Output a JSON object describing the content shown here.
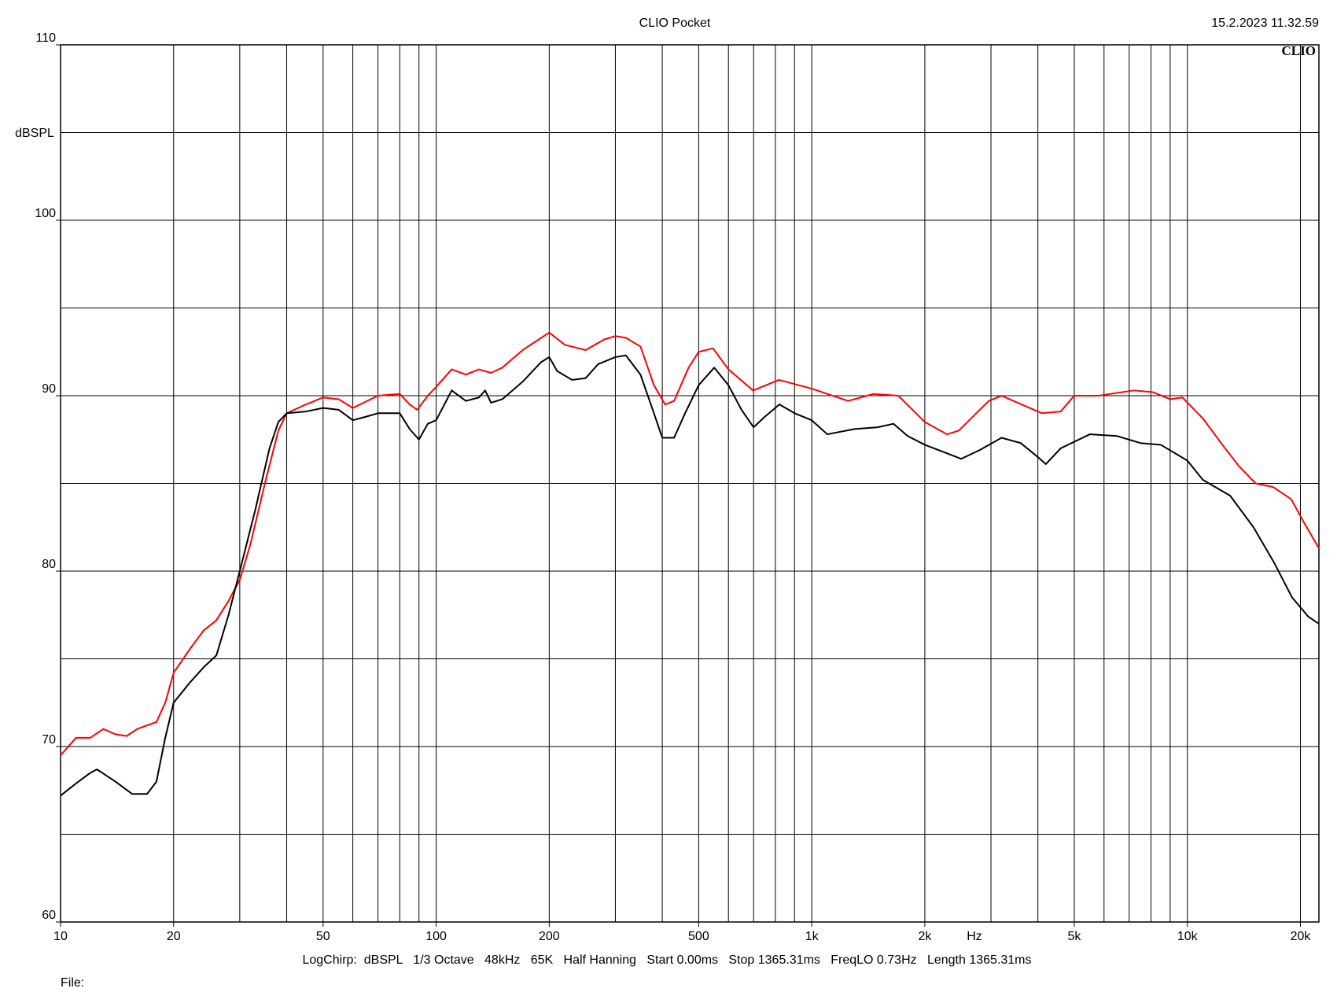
{
  "chart_data": {
    "type": "line",
    "title": "CLIO Pocket",
    "timestamp": "15.2.2023 11.32.59",
    "logo": "CLIO",
    "ylabel": "dBSPL",
    "xlabel": "Hz",
    "settings_text": "LogChirp:  dBSPL   1/3 Octave   48kHz   65K   Half Hanning   Start 0.00ms   Stop 1365.31ms   FreqLO 0.73Hz   Length 1365.31ms",
    "file_label": "File:",
    "xscale": "log",
    "grid": true,
    "xlim": [
      10,
      22400
    ],
    "ylim": [
      60,
      110
    ],
    "xticks": [
      10,
      20,
      50,
      100,
      200,
      500,
      {
        "value": 1000,
        "label": "1k"
      },
      {
        "value": 2000,
        "label": "2k"
      },
      {
        "value": 5000,
        "label": "5k"
      },
      {
        "value": 10000,
        "label": "10k"
      },
      {
        "value": 20000,
        "label": "20k"
      }
    ],
    "x_minor_grid": [
      30,
      40,
      60,
      70,
      80,
      90,
      300,
      400,
      600,
      700,
      800,
      900,
      3000,
      4000,
      6000,
      7000,
      8000,
      9000
    ],
    "yticks": [
      60,
      70,
      80,
      90,
      100,
      110
    ],
    "y_minor_grid": [
      65,
      75,
      85,
      95,
      105
    ],
    "series": [
      {
        "color": "#ff0000",
        "x": [
          10,
          11,
          12,
          13,
          14,
          15,
          16,
          18,
          19,
          20,
          22,
          24,
          26,
          28,
          30,
          32,
          35,
          38,
          40,
          45,
          50,
          55,
          60,
          70,
          80,
          85,
          89,
          95,
          100,
          110,
          120,
          130,
          140,
          150,
          170,
          200,
          220,
          250,
          280,
          300,
          320,
          350,
          380,
          407,
          430,
          470,
          500,
          546,
          600,
          698,
          818,
          1000,
          1250,
          1460,
          1700,
          2000,
          2290,
          2460,
          2960,
          3200,
          4100,
          4600,
          5000,
          5800,
          7200,
          8100,
          9000,
          9700,
          11000,
          12400,
          13700,
          15200,
          16900,
          18900,
          20400,
          22400
        ],
        "values": [
          69.5,
          70.5,
          70.5,
          71.0,
          70.7,
          70.6,
          71.0,
          71.4,
          72.5,
          74.2,
          75.5,
          76.6,
          77.2,
          78.3,
          79.5,
          81.5,
          85.0,
          88.0,
          89.0,
          89.5,
          89.9,
          89.8,
          89.3,
          90.0,
          90.1,
          89.5,
          89.2,
          90.0,
          90.5,
          91.5,
          91.2,
          91.5,
          91.3,
          91.6,
          92.6,
          93.6,
          92.9,
          92.6,
          93.2,
          93.4,
          93.3,
          92.8,
          90.6,
          89.5,
          89.7,
          91.6,
          92.5,
          92.7,
          91.5,
          90.3,
          90.9,
          90.4,
          89.7,
          90.1,
          90.0,
          88.5,
          87.8,
          88.0,
          89.7,
          90.0,
          89.0,
          89.1,
          90.0,
          90.0,
          90.3,
          90.2,
          89.8,
          89.9,
          88.7,
          87.2,
          86.0,
          85.0,
          84.8,
          84.1,
          82.8,
          81.3
        ]
      },
      {
        "color": "#000000",
        "x": [
          10,
          11,
          12,
          12.5,
          14,
          15.5,
          17,
          18,
          19,
          20,
          22,
          24,
          26,
          28,
          30,
          33,
          36,
          38,
          40,
          45,
          50,
          55,
          60,
          65,
          70,
          80,
          85,
          90,
          95,
          100,
          110,
          120,
          130,
          135,
          140,
          150,
          170,
          190,
          200,
          210,
          230,
          250,
          270,
          300,
          320,
          350,
          380,
          400,
          430,
          460,
          500,
          550,
          600,
          650,
          700,
          750,
          820,
          900,
          1000,
          1100,
          1300,
          1500,
          1650,
          1800,
          2000,
          2300,
          2500,
          2800,
          3200,
          3600,
          4000,
          4200,
          4600,
          5500,
          6500,
          7500,
          8500,
          10000,
          11000,
          13000,
          15000,
          17000,
          19000,
          21000,
          22400
        ],
        "values": [
          67.2,
          67.9,
          68.5,
          68.7,
          68.0,
          67.3,
          67.3,
          68.0,
          70.5,
          72.5,
          73.6,
          74.5,
          75.2,
          77.5,
          80.0,
          83.5,
          87.0,
          88.5,
          89.0,
          89.1,
          89.3,
          89.2,
          88.6,
          88.8,
          89.0,
          89.0,
          88.1,
          87.5,
          88.4,
          88.6,
          90.3,
          89.7,
          89.9,
          90.3,
          89.6,
          89.8,
          90.8,
          91.9,
          92.2,
          91.4,
          90.9,
          91.0,
          91.8,
          92.2,
          92.3,
          91.2,
          89.0,
          87.6,
          87.6,
          89.0,
          90.6,
          91.6,
          90.6,
          89.2,
          88.2,
          88.8,
          89.5,
          89.0,
          88.6,
          87.8,
          88.1,
          88.2,
          88.4,
          87.7,
          87.2,
          86.7,
          86.4,
          86.9,
          87.6,
          87.3,
          86.5,
          86.1,
          87.0,
          87.8,
          87.7,
          87.3,
          87.2,
          86.3,
          85.2,
          84.3,
          82.5,
          80.5,
          78.5,
          77.4,
          77.0
        ]
      }
    ]
  }
}
